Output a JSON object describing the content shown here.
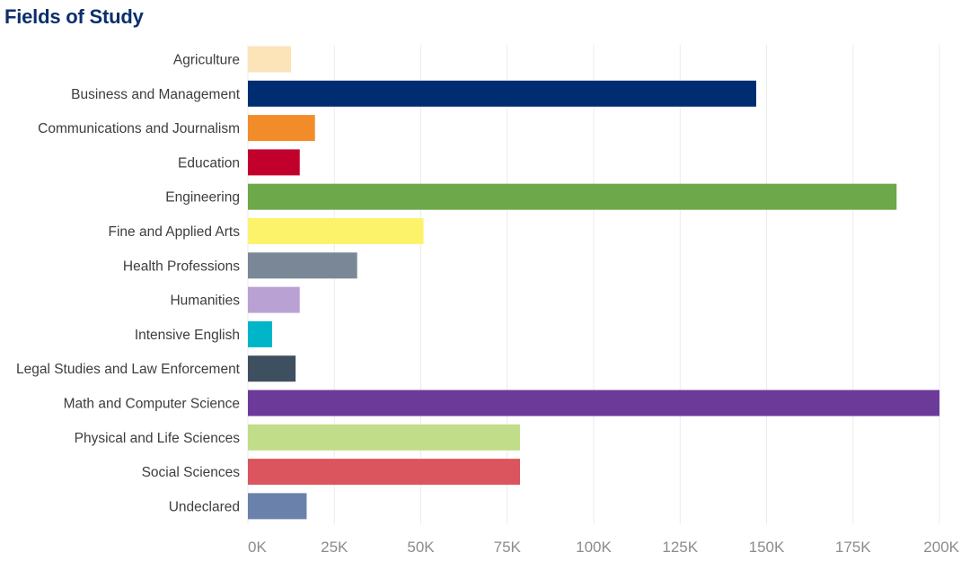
{
  "title": "Fields of Study",
  "chart_data": {
    "type": "bar",
    "orientation": "horizontal",
    "title": "Fields of Study",
    "xlabel": "",
    "ylabel": "",
    "xlim": [
      0,
      200000
    ],
    "grid": true,
    "ticks": [
      {
        "value": 0,
        "label": "0K"
      },
      {
        "value": 25000,
        "label": "25K"
      },
      {
        "value": 50000,
        "label": "50K"
      },
      {
        "value": 75000,
        "label": "75K"
      },
      {
        "value": 100000,
        "label": "100K"
      },
      {
        "value": 125000,
        "label": "125K"
      },
      {
        "value": 150000,
        "label": "150K"
      },
      {
        "value": 175000,
        "label": "175K"
      },
      {
        "value": 200000,
        "label": "200K"
      }
    ],
    "categories": [
      "Agriculture",
      "Business and Management",
      "Communications and Journalism",
      "Education",
      "Engineering",
      "Fine and Applied Arts",
      "Health Professions",
      "Humanities",
      "Intensive English",
      "Legal Studies and Law Enforcement",
      "Math and Computer Science",
      "Physical and Life Sciences",
      "Social Sciences",
      "Undeclared"
    ],
    "values": [
      12500,
      147000,
      19400,
      15000,
      187600,
      50800,
      31600,
      15000,
      7000,
      13800,
      200000,
      78700,
      78700,
      17000
    ],
    "colors": [
      "#fde3b8",
      "#002d72",
      "#f28c2b",
      "#c1002b",
      "#6da84a",
      "#fdf36b",
      "#7a8797",
      "#b9a2d3",
      "#00b5c8",
      "#3e4f60",
      "#6c3b9a",
      "#c1dd8a",
      "#db555f",
      "#6a81ab"
    ]
  }
}
